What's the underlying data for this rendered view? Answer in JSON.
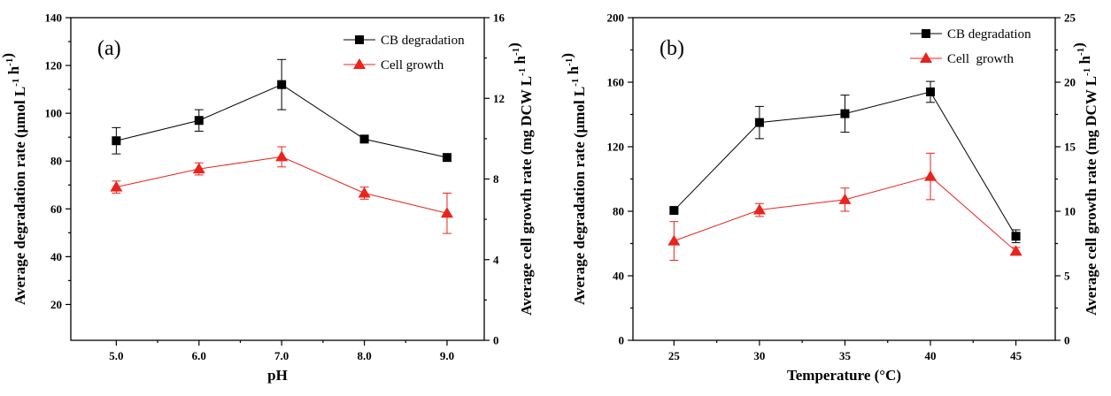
{
  "chart_data": [
    {
      "type": "line",
      "panel_label": "(a)",
      "xlabel": "pH",
      "ylabel_left": "Average degradation rate (μmol L⁻¹ h⁻¹)",
      "ylabel_right": "Average cell growth rate (mg DCW L⁻¹ h⁻¹)",
      "x": [
        5.0,
        6.0,
        7.0,
        8.0,
        9.0
      ],
      "x_tick_labels": [
        "5.0",
        "6.0",
        "7.0",
        "8.0",
        "9.0"
      ],
      "xlim": [
        4.45,
        9.45
      ],
      "ylim_left": [
        5,
        140
      ],
      "y_ticks_left": [
        20,
        40,
        60,
        80,
        100,
        120,
        140
      ],
      "ylim_right": [
        0,
        16
      ],
      "y_ticks_right": [
        0,
        4,
        8,
        12,
        16
      ],
      "legend_position": "top-right",
      "grid": false,
      "series": [
        {
          "name": "CB degradation",
          "axis": "left",
          "marker": "square",
          "color": "#000000",
          "values": [
            88.5,
            97.0,
            112.0,
            89.2,
            81.5
          ],
          "errors": [
            5.5,
            4.5,
            10.5,
            1.0,
            1.0
          ]
        },
        {
          "name": "Cell growth",
          "axis": "right",
          "marker": "triangle",
          "color": "#e8241c",
          "values": [
            7.6,
            8.5,
            9.1,
            7.3,
            6.3
          ],
          "errors": [
            0.3,
            0.3,
            0.5,
            0.3,
            1.0
          ]
        }
      ]
    },
    {
      "type": "line",
      "panel_label": "(b)",
      "xlabel": "Temperature (°C)",
      "ylabel_left": "Average degradation rate (μmol L⁻¹ h⁻¹)",
      "ylabel_right": "Average cell growth rate (mg DCW L⁻¹ h⁻¹)",
      "x": [
        25,
        30,
        35,
        40,
        45
      ],
      "x_tick_labels": [
        "25",
        "30",
        "35",
        "40",
        "45"
      ],
      "xlim": [
        22.6,
        47.3
      ],
      "ylim_left": [
        0,
        200
      ],
      "y_ticks_left": [
        0,
        40,
        80,
        120,
        160,
        200
      ],
      "ylim_right": [
        0,
        25
      ],
      "y_ticks_right": [
        0,
        5,
        10,
        15,
        20,
        25
      ],
      "legend_position": "top-right",
      "grid": false,
      "series": [
        {
          "name": "CB degradation",
          "axis": "left",
          "marker": "square",
          "color": "#000000",
          "values": [
            80.5,
            135.0,
            140.5,
            154.0,
            64.5
          ],
          "errors": [
            1.0,
            10.0,
            11.5,
            6.5,
            4.0
          ]
        },
        {
          "name": "Cell  growth",
          "axis": "right",
          "marker": "triangle",
          "color": "#e8241c",
          "values": [
            7.7,
            10.1,
            10.9,
            12.7,
            6.9
          ],
          "errors": [
            1.5,
            0.5,
            0.9,
            1.8,
            0.3
          ]
        }
      ]
    }
  ]
}
